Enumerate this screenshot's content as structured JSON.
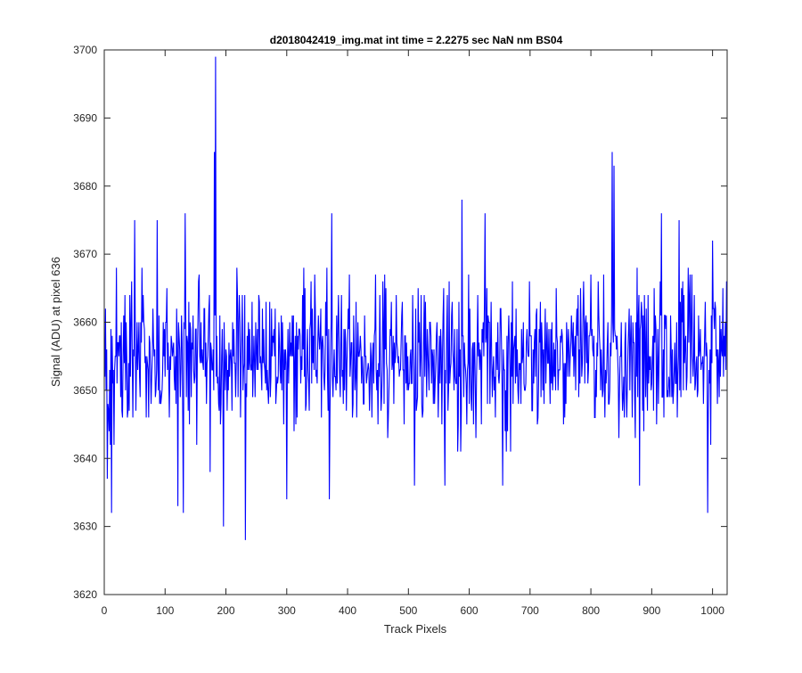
{
  "chart_data": {
    "type": "line",
    "title": "d2018042419_img.mat int time = 2.2275 sec  NaN nm BS04",
    "xlabel": "Track Pixels",
    "ylabel": "Signal (ADU) at pixel 636",
    "xlim": [
      0,
      1024
    ],
    "ylim": [
      3620,
      3700
    ],
    "x_ticks": [
      0,
      100,
      200,
      300,
      400,
      500,
      600,
      700,
      800,
      900,
      1000
    ],
    "y_ticks": [
      3620,
      3630,
      3640,
      3650,
      3660,
      3670,
      3680,
      3690,
      3700
    ],
    "grid": false,
    "line_color": "#0000ff",
    "n_points": 1024,
    "baseline": 3655,
    "noise_sigma": 5.5,
    "notable_points": [
      {
        "x": 5,
        "y": 3637
      },
      {
        "x": 12,
        "y": 3632
      },
      {
        "x": 50,
        "y": 3675
      },
      {
        "x": 87,
        "y": 3675
      },
      {
        "x": 121,
        "y": 3633
      },
      {
        "x": 130,
        "y": 3632
      },
      {
        "x": 133,
        "y": 3676
      },
      {
        "x": 174,
        "y": 3638
      },
      {
        "x": 181,
        "y": 3685
      },
      {
        "x": 183,
        "y": 3699
      },
      {
        "x": 196,
        "y": 3630
      },
      {
        "x": 232,
        "y": 3628
      },
      {
        "x": 300,
        "y": 3634
      },
      {
        "x": 370,
        "y": 3634
      },
      {
        "x": 374,
        "y": 3676
      },
      {
        "x": 510,
        "y": 3636
      },
      {
        "x": 560,
        "y": 3636
      },
      {
        "x": 588,
        "y": 3678
      },
      {
        "x": 626,
        "y": 3676
      },
      {
        "x": 655,
        "y": 3636
      },
      {
        "x": 835,
        "y": 3685
      },
      {
        "x": 838,
        "y": 3683
      },
      {
        "x": 880,
        "y": 3636
      },
      {
        "x": 916,
        "y": 3676
      },
      {
        "x": 945,
        "y": 3675
      },
      {
        "x": 992,
        "y": 3632
      },
      {
        "x": 1000,
        "y": 3672
      }
    ]
  }
}
